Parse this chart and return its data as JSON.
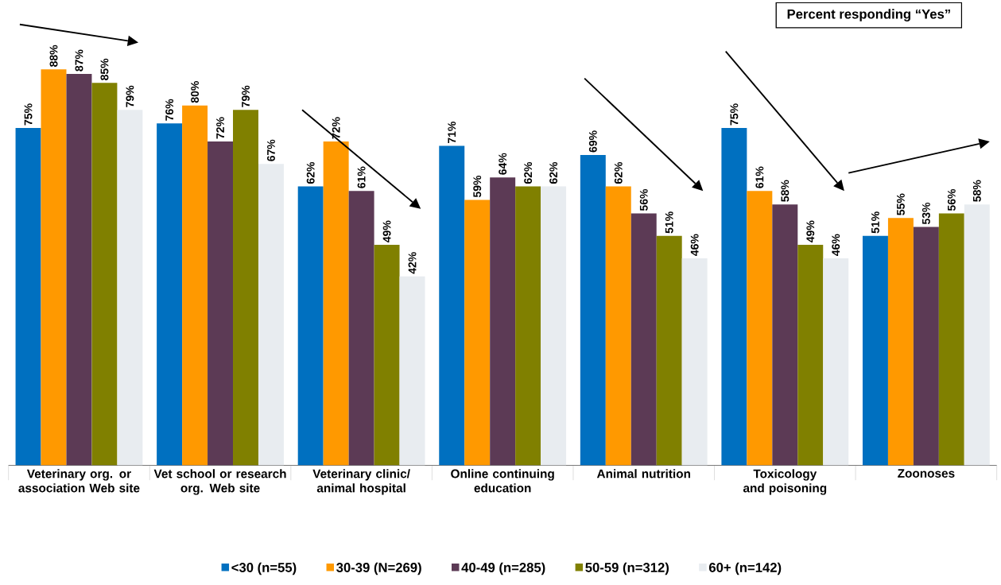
{
  "chart_data": {
    "type": "bar",
    "legend": "bottom",
    "categories": [
      "Veterinary org. or association Web site",
      "Vet school or research org. Web site",
      "Veterinary clinic/ animal hospital",
      "Online continuing education",
      "Animal nutrition",
      "Toxicology and poisoning",
      "Zoonoses"
    ],
    "series": [
      {
        "name": "<30 (n=55)",
        "color": "#0070c0",
        "values": [
          75,
          76,
          62,
          71,
          69,
          75,
          51
        ],
        "value_labels": [
          "75%",
          "76%",
          "62%",
          "71%",
          "69%",
          "75%",
          "51%"
        ]
      },
      {
        "name": "30-39 (N=269)",
        "color": "#ff9900",
        "values": [
          88,
          80,
          72,
          59,
          62,
          61,
          55
        ],
        "value_labels": [
          "88%",
          "80%",
          "72%",
          "59%",
          "62%",
          "61%",
          "55%"
        ]
      },
      {
        "name": "40-49 (n=285)",
        "color": "#5c3a55",
        "values": [
          87,
          72,
          61,
          64,
          56,
          58,
          53
        ],
        "value_labels": [
          "87%",
          "72%",
          "61%",
          "64%",
          "56%",
          "58%",
          "53%"
        ]
      },
      {
        "name": "50-59 (n=312)",
        "color": "#808000",
        "values": [
          85,
          79,
          49,
          62,
          51,
          49,
          56
        ],
        "value_labels": [
          "85%",
          "79%",
          "49%",
          "62%",
          "51%",
          "49%",
          "56%"
        ]
      },
      {
        "name": "60+ (n=142)",
        "color": "#e8ecf0",
        "values": [
          79,
          67,
          42,
          62,
          46,
          46,
          58
        ],
        "value_labels": [
          "79%",
          "67%",
          "42%",
          "62%",
          "46%",
          "46%",
          "58%"
        ]
      }
    ],
    "annotations": [
      "Percent responding “Yes”"
    ]
  }
}
